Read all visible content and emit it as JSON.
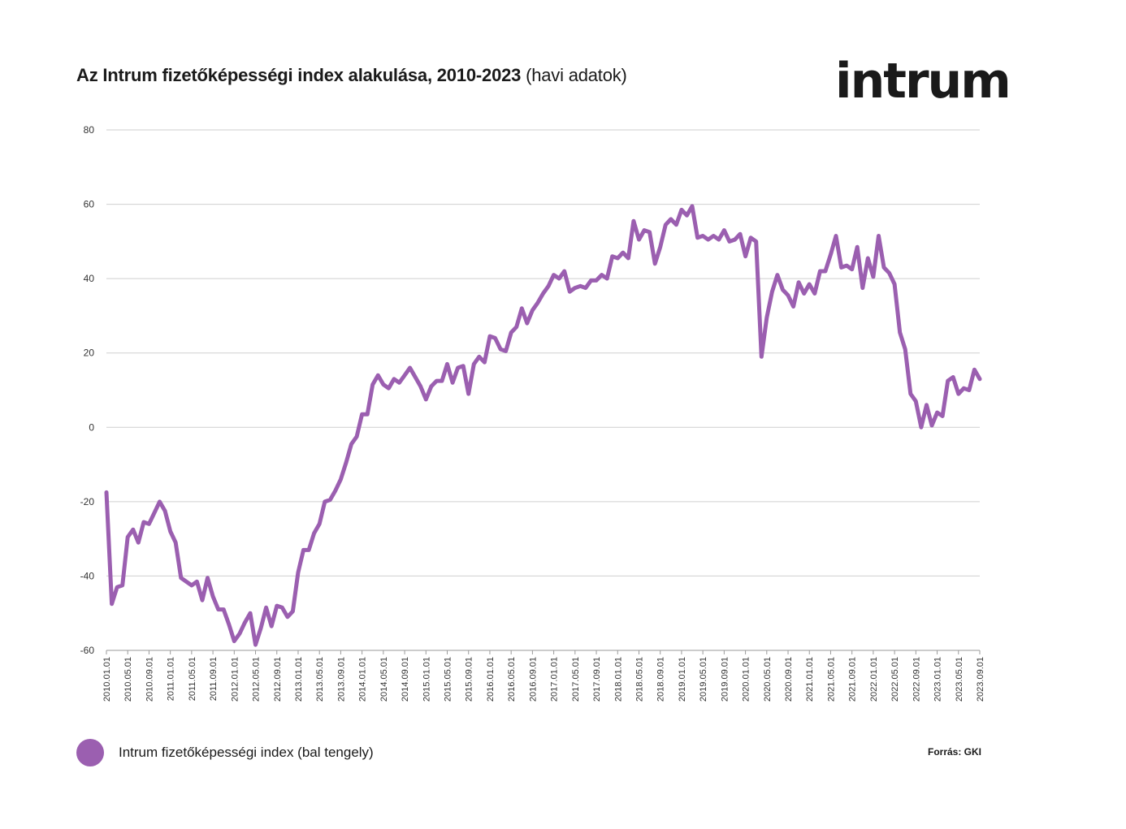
{
  "header": {
    "title_bold": "Az Intrum fizetőképességi index alakulása, 2010-2023",
    "title_normal": "(havi adatok)",
    "logo_text": "intrum"
  },
  "legend": {
    "label": "Intrum fizetőképességi index (bal tengely)",
    "color": "#9b5fb0"
  },
  "source": "Forrás: GKI",
  "chart_data": {
    "type": "line",
    "title": "Az Intrum fizetőképességi index alakulása, 2010-2023 (havi adatok)",
    "xlabel": "",
    "ylabel": "",
    "ylim": [
      -60,
      80
    ],
    "yticks": [
      80,
      60,
      40,
      20,
      0,
      -20,
      -40,
      -60
    ],
    "ytick_labels": [
      "80",
      "60",
      "40",
      "20",
      "0",
      "-20",
      "-40",
      "-60"
    ],
    "grid": true,
    "legend_position": "bottom-left",
    "xtick_labels": [
      "2010.01.01",
      "2010.05.01",
      "2010.09.01",
      "2011.01.01",
      "2011.05.01",
      "2011.09.01",
      "2012.01.01",
      "2012.05.01",
      "2012.09.01",
      "2013.01.01",
      "2013.05.01",
      "2013.09.01",
      "2014.01.01",
      "2014.05.01",
      "2014.09.01",
      "2015.01.01",
      "2015.05.01",
      "2015.09.01",
      "2016.01.01",
      "2016.05.01",
      "2016.09.01",
      "2017.01.01",
      "2017.05.01",
      "2017.09.01",
      "2018.01.01",
      "2018.05.01",
      "2018.09.01",
      "2019.01.01",
      "2019.05.01",
      "2019.09.01",
      "2020.01.01",
      "2020.05.01",
      "2020.09.01",
      "2021.01.01",
      "2021.05.01",
      "2021.09.01",
      "2022.01.01",
      "2022.05.01",
      "2022.09.01",
      "2023.01.01",
      "2023.05.01",
      "2023.09.01"
    ],
    "series": [
      {
        "name": "Intrum fizetőképességi index (bal tengely)",
        "color": "#9b5fb0",
        "start": "2010.01",
        "values": [
          -17.5,
          -47.5,
          -43,
          -42.5,
          -29.5,
          -27.5,
          -31,
          -25.5,
          -26,
          -23,
          -20,
          -22.5,
          -28,
          -31,
          -40.5,
          -41.5,
          -42.5,
          -41.5,
          -46.5,
          -40.5,
          -45.5,
          -49,
          -49,
          -53,
          -57.5,
          -55.5,
          -52.5,
          -50,
          -58.5,
          -54,
          -48.5,
          -53.5,
          -48,
          -48.5,
          -51,
          -49.5,
          -39,
          -33,
          -33,
          -28.5,
          -26,
          -20,
          -19.5,
          -17,
          -14,
          -9.5,
          -4.5,
          -2.5,
          3.5,
          3.5,
          11.5,
          14,
          11.5,
          10.5,
          13,
          12,
          14,
          16,
          13.5,
          11,
          7.5,
          11,
          12.5,
          12.5,
          17,
          12,
          16,
          16.5,
          9,
          17,
          19,
          17.5,
          24.5,
          24,
          21,
          20.5,
          25.5,
          27,
          32,
          28,
          31.5,
          33.5,
          36,
          38,
          41,
          40,
          42,
          36.5,
          37.5,
          38,
          37.5,
          39.5,
          39.5,
          41,
          40,
          46,
          45.5,
          47,
          45.5,
          55.5,
          50.5,
          53,
          52.5,
          44,
          48.5,
          54.5,
          56,
          54.5,
          58.5,
          57,
          59.5,
          51,
          51.5,
          50.5,
          51.5,
          50.5,
          53,
          50,
          50.5,
          52,
          46,
          51,
          50,
          19,
          29.5,
          36.5,
          41,
          37,
          35.5,
          32.5,
          39,
          36,
          38.5,
          36,
          42,
          42,
          46.5,
          51.5,
          43,
          43.5,
          42.5,
          48.5,
          37.5,
          45.5,
          40.5,
          51.5,
          43,
          41.5,
          38.5,
          25.5,
          21,
          9,
          7,
          0,
          6,
          0.5,
          4,
          3,
          12.5,
          13.5,
          9,
          10.5,
          10,
          15.5,
          13
        ]
      }
    ]
  }
}
